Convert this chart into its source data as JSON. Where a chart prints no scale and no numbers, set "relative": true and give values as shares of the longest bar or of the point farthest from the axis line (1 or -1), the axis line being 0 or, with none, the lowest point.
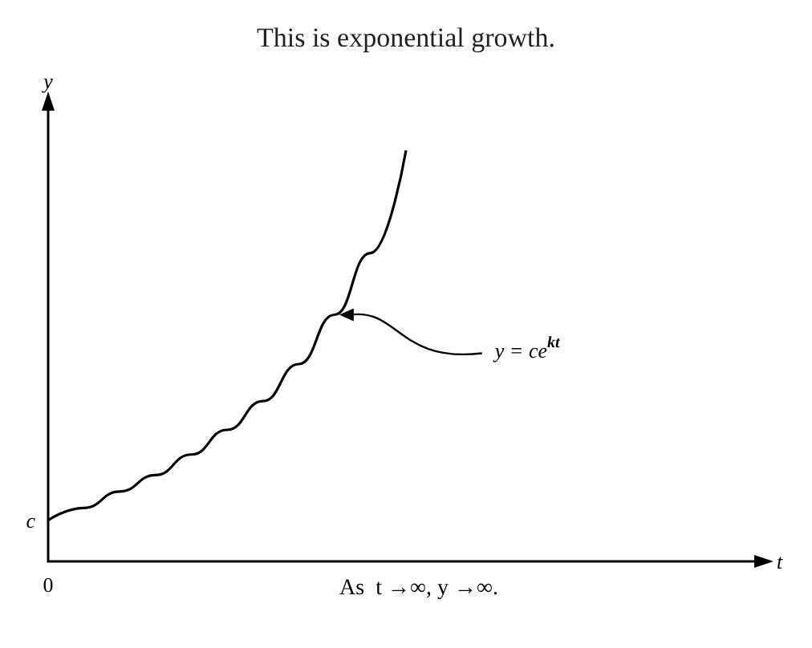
{
  "chart_data": {
    "type": "line",
    "title": "This is exponential growth.",
    "xlabel": "t",
    "ylabel": "y",
    "relative": true,
    "color": "#000000",
    "marker": "none",
    "grid": false,
    "categories": [
      null,
      null,
      null,
      null,
      null,
      null,
      null,
      null,
      null,
      null,
      null,
      null,
      null,
      null,
      null,
      null,
      null,
      null,
      null,
      null,
      null
    ],
    "values": [
      0.1,
      0.13,
      0.17,
      0.21,
      0.26,
      0.32,
      0.39,
      0.48,
      0.6,
      0.75,
      1.0,
      null,
      null,
      null,
      null,
      null,
      null,
      null,
      null,
      null,
      null
    ],
    "annotations": [
      "c",
      "0",
      "y = ce$^{kt}$",
      "As  t →∞, y →∞."
    ]
  }
}
